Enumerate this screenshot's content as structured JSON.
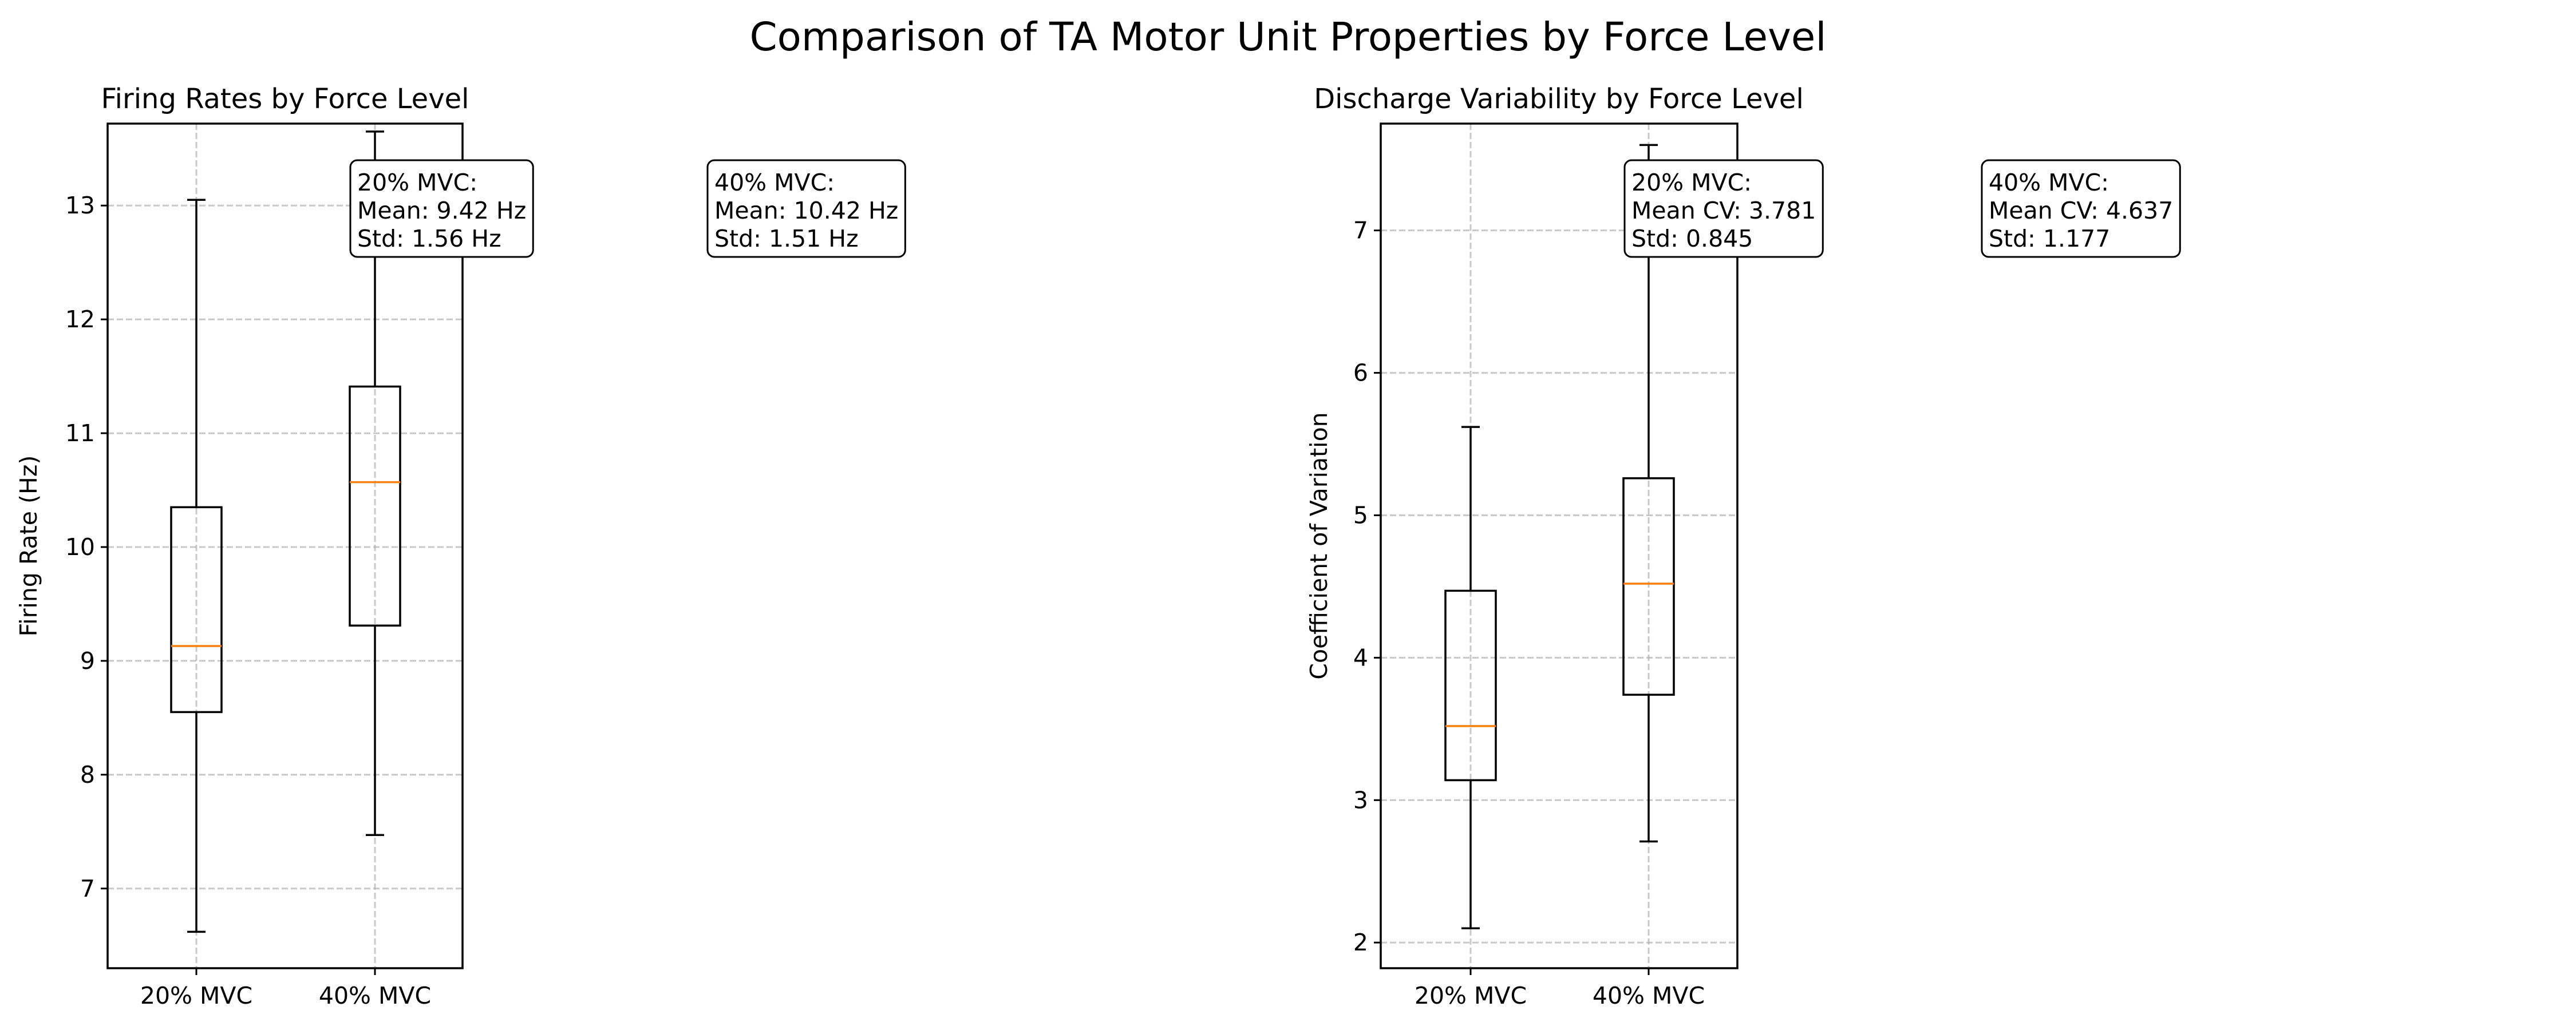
{
  "figure": {
    "title": "Comparison of TA Motor Unit Properties by Force Level"
  },
  "chart_data": [
    {
      "type": "box",
      "title": "Firing Rates by Force Level",
      "xlabel": "",
      "ylabel": "Firing Rate (Hz)",
      "categories": [
        "20% MVC",
        "40% MVC"
      ],
      "ylim": [
        6.3,
        13.72
      ],
      "yticks": [
        7,
        8,
        9,
        10,
        11,
        12,
        13
      ],
      "grid": true,
      "boxes": [
        {
          "category": "20% MVC",
          "whisker_low": 6.62,
          "q1": 8.55,
          "median": 9.13,
          "q3": 10.35,
          "whisker_high": 13.05
        },
        {
          "category": "40% MVC",
          "whisker_low": 7.47,
          "q1": 9.31,
          "median": 10.57,
          "q3": 11.41,
          "whisker_high": 13.65
        }
      ],
      "annotations": [
        {
          "lines": [
            "20% MVC:",
            "Mean: 9.42 Hz",
            "Std: 1.56 Hz"
          ]
        },
        {
          "lines": [
            "40% MVC:",
            "Mean: 10.42 Hz",
            "Std: 1.51 Hz"
          ]
        }
      ]
    },
    {
      "type": "box",
      "title": "Discharge Variability by Force Level",
      "xlabel": "",
      "ylabel": "Coefficient of Variation",
      "categories": [
        "20% MVC",
        "40% MVC"
      ],
      "ylim": [
        1.82,
        7.75
      ],
      "yticks": [
        2,
        3,
        4,
        5,
        6,
        7
      ],
      "grid": true,
      "boxes": [
        {
          "category": "20% MVC",
          "whisker_low": 2.1,
          "q1": 3.14,
          "median": 3.52,
          "q3": 4.47,
          "whisker_high": 5.62
        },
        {
          "category": "40% MVC",
          "whisker_low": 2.71,
          "q1": 3.74,
          "median": 4.52,
          "q3": 5.26,
          "whisker_high": 7.6
        }
      ],
      "annotations": [
        {
          "lines": [
            "20% MVC:",
            "Mean CV: 3.781",
            "Std: 0.845"
          ]
        },
        {
          "lines": [
            "40% MVC:",
            "Mean CV: 4.637",
            "Std: 1.177"
          ]
        }
      ]
    }
  ],
  "colors": {
    "median": "#ff7f0e",
    "grid": "#b0b0b0",
    "axis": "#000000"
  }
}
